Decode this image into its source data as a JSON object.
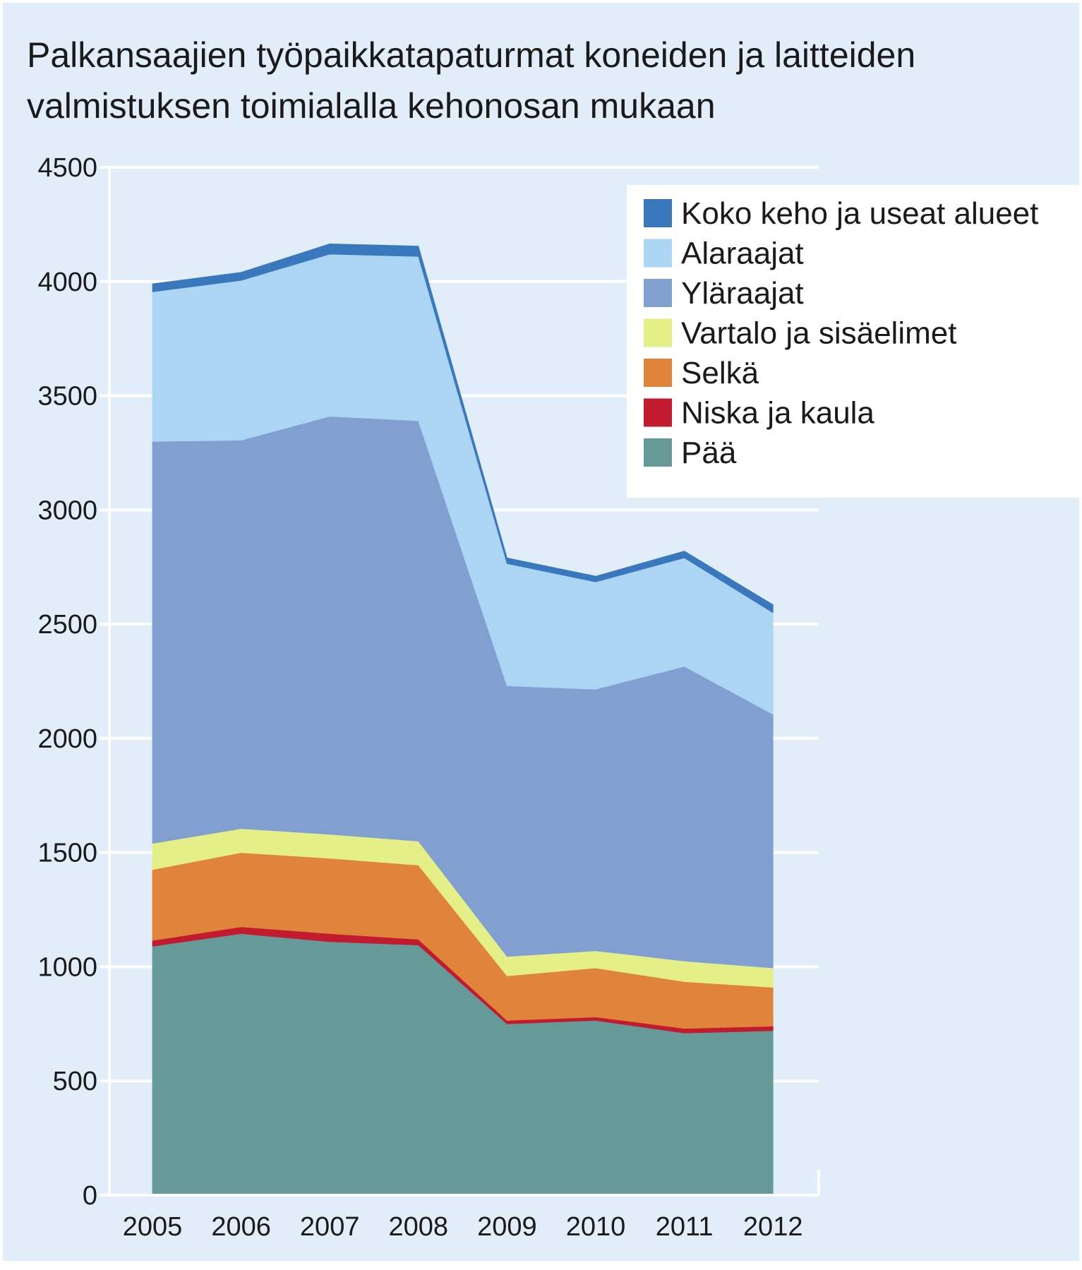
{
  "chart_data": {
    "type": "area",
    "stacked": true,
    "title_lines": [
      "Palkansaajien työpaikkatapaturmat koneiden ja laitteiden",
      "valmistuksen toimialalla kehonosan mukaan"
    ],
    "xlabel": "",
    "ylabel": "",
    "x": [
      "2005",
      "2006",
      "2007",
      "2008",
      "2009",
      "2010",
      "2011",
      "2012"
    ],
    "ylim": [
      0,
      4500
    ],
    "yticks": [
      0,
      500,
      1000,
      1500,
      2000,
      2500,
      3000,
      3500,
      4000,
      4500
    ],
    "grid": true,
    "legend_position": "top-right",
    "series": [
      {
        "name": "Pää",
        "color": "#669a99",
        "values": [
          1090,
          1145,
          1110,
          1095,
          750,
          765,
          710,
          720
        ]
      },
      {
        "name": "Niska ja kaula",
        "color": "#c21a2e",
        "values": [
          25,
          30,
          35,
          25,
          15,
          15,
          20,
          20
        ]
      },
      {
        "name": "Selkä",
        "color": "#e0843c",
        "values": [
          310,
          325,
          330,
          325,
          195,
          215,
          205,
          170
        ]
      },
      {
        "name": "Vartalo ja sisäelimet",
        "color": "#e4ef87",
        "values": [
          115,
          105,
          105,
          105,
          85,
          75,
          90,
          85
        ]
      },
      {
        "name": "Yläraajat",
        "color": "#819fd0",
        "values": [
          1760,
          1700,
          1830,
          1840,
          1185,
          1145,
          1290,
          1110
        ]
      },
      {
        "name": "Alaraajat",
        "color": "#abd5f2",
        "values": [
          655,
          700,
          710,
          720,
          535,
          470,
          475,
          445
        ]
      },
      {
        "name": "Koko keho ja useat alueet",
        "color": "#3a78bd",
        "values": [
          35,
          35,
          45,
          45,
          25,
          25,
          30,
          35
        ]
      }
    ],
    "legend_order": [
      "Koko keho ja useat alueet",
      "Alaraajat",
      "Yläraajat",
      "Vartalo ja sisäelimet",
      "Selkä",
      "Niska ja kaula",
      "Pää"
    ]
  },
  "colors": {
    "page_background": "#ffffff",
    "panel_background": "#e1eef9",
    "gridline": "#ffffff",
    "legend_background": "#ffffff"
  }
}
